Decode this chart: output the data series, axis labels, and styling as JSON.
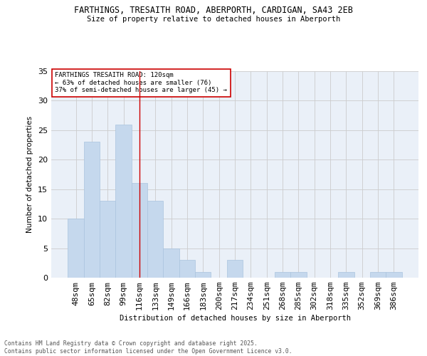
{
  "title1": "FARTHINGS, TRESAITH ROAD, ABERPORTH, CARDIGAN, SA43 2EB",
  "title2": "Size of property relative to detached houses in Aberporth",
  "xlabel": "Distribution of detached houses by size in Aberporth",
  "ylabel": "Number of detached properties",
  "categories": [
    "48sqm",
    "65sqm",
    "82sqm",
    "99sqm",
    "116sqm",
    "133sqm",
    "149sqm",
    "166sqm",
    "183sqm",
    "200sqm",
    "217sqm",
    "234sqm",
    "251sqm",
    "268sqm",
    "285sqm",
    "302sqm",
    "318sqm",
    "335sqm",
    "352sqm",
    "369sqm",
    "386sqm"
  ],
  "values": [
    10,
    23,
    13,
    26,
    16,
    13,
    5,
    3,
    1,
    0,
    3,
    0,
    0,
    1,
    1,
    0,
    0,
    1,
    0,
    1,
    1
  ],
  "bar_color": "#c5d8ed",
  "bar_edge_color": "#aac4de",
  "grid_color": "#cccccc",
  "bg_color": "#eaf0f8",
  "red_line_x": 4,
  "annotation_text": "FARTHINGS TRESAITH ROAD: 120sqm\n← 63% of detached houses are smaller (76)\n37% of semi-detached houses are larger (45) →",
  "annotation_box_color": "#ffffff",
  "annotation_box_edge": "#cc0000",
  "red_line_color": "#cc0000",
  "footer1": "Contains HM Land Registry data © Crown copyright and database right 2025.",
  "footer2": "Contains public sector information licensed under the Open Government Licence v3.0.",
  "ylim": [
    0,
    35
  ],
  "yticks": [
    0,
    5,
    10,
    15,
    20,
    25,
    30,
    35
  ]
}
